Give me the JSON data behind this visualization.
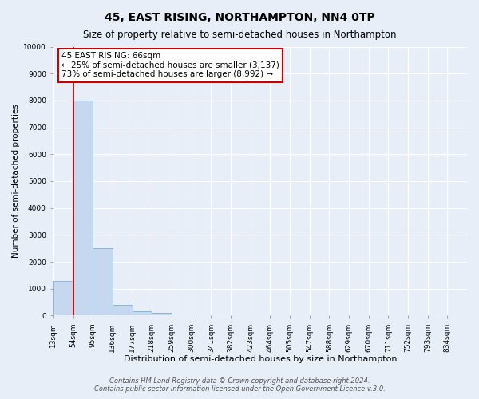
{
  "title": "45, EAST RISING, NORTHAMPTON, NN4 0TP",
  "subtitle": "Size of property relative to semi-detached houses in Northampton",
  "xlabel": "Distribution of semi-detached houses by size in Northampton",
  "ylabel": "Number of semi-detached properties",
  "bin_labels": [
    "13sqm",
    "54sqm",
    "95sqm",
    "136sqm",
    "177sqm",
    "218sqm",
    "259sqm",
    "300sqm",
    "341sqm",
    "382sqm",
    "423sqm",
    "464sqm",
    "505sqm",
    "547sqm",
    "588sqm",
    "629sqm",
    "670sqm",
    "711sqm",
    "752sqm",
    "793sqm",
    "834sqm"
  ],
  "bar_values": [
    1300,
    8000,
    2500,
    400,
    150,
    100,
    0,
    0,
    0,
    0,
    0,
    0,
    0,
    0,
    0,
    0,
    0,
    0,
    0,
    0,
    0
  ],
  "bar_color": "#c5d8f0",
  "bar_edge_color": "#7aafd4",
  "red_line_x": 1,
  "annotation_title": "45 EAST RISING: 66sqm",
  "annotation_line1": "← 25% of semi-detached houses are smaller (3,137)",
  "annotation_line2": "73% of semi-detached houses are larger (8,992) →",
  "annotation_box_facecolor": "#ffffff",
  "annotation_box_edgecolor": "#cc0000",
  "red_line_color": "#cc0000",
  "ylim": [
    0,
    10000
  ],
  "yticks": [
    0,
    1000,
    2000,
    3000,
    4000,
    5000,
    6000,
    7000,
    8000,
    9000,
    10000
  ],
  "footer1": "Contains HM Land Registry data © Crown copyright and database right 2024.",
  "footer2": "Contains public sector information licensed under the Open Government Licence v.3.0.",
  "fig_bg": "#e8eef8",
  "plot_bg": "#e8eef8",
  "grid_color": "#ffffff",
  "title_fontsize": 10,
  "subtitle_fontsize": 8.5,
  "xlabel_fontsize": 8,
  "ylabel_fontsize": 7.5,
  "tick_fontsize": 6.5,
  "annot_fontsize": 7.5,
  "footer_fontsize": 6
}
